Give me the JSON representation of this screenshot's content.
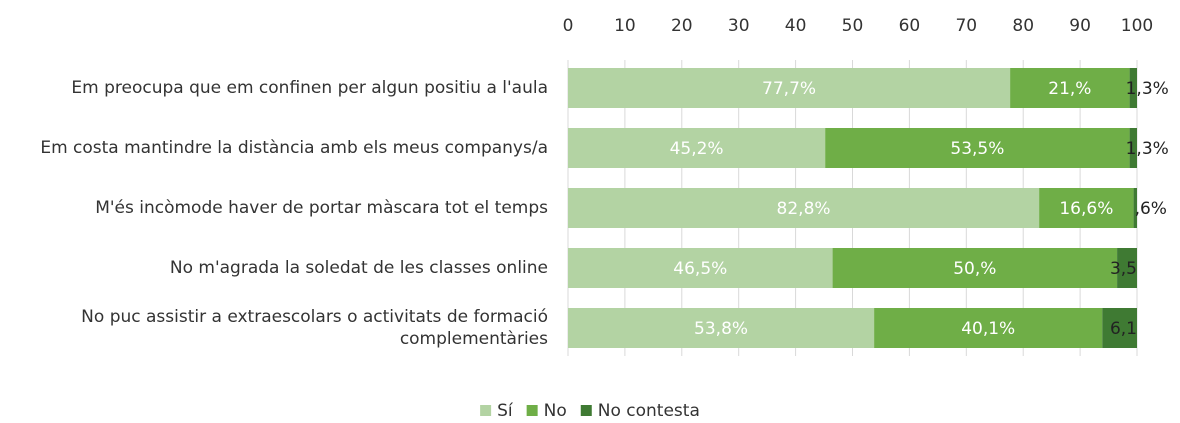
{
  "chart_data": {
    "type": "stacked-barh",
    "categories": [
      "Em preocupa que em confinen per algun positiu a l'aula",
      "Em costa mantindre la distància amb els meus companys/a",
      "M'és incòmode haver de portar màscara tot el temps",
      "No m'agrada la soledat de les classes online",
      "No puc assistir a extraescolars o activitats de formació complementàries"
    ],
    "series": [
      {
        "name": "Sí",
        "color": "#b3d3a3",
        "values": [
          77.7,
          45.2,
          82.8,
          46.5,
          53.8
        ],
        "value_labels": [
          "77,7%",
          "45,2%",
          "82,8%",
          "46,5%",
          "53,8%"
        ]
      },
      {
        "name": "No",
        "color": "#6fae47",
        "values": [
          21,
          53.5,
          16.6,
          50,
          40.1
        ],
        "value_labels": [
          "21,%",
          "53,5%",
          "16,6%",
          "50,%",
          "40,1%"
        ]
      },
      {
        "name": "No contesta",
        "color": "#3f7a33",
        "values": [
          1.3,
          1.3,
          0.6,
          3.5,
          6.1
        ],
        "value_labels": [
          "1,3%",
          "1,3%",
          ",6%",
          "3,5",
          "6,1"
        ]
      }
    ],
    "xlim": [
      0,
      100
    ],
    "xticks": [
      0,
      10,
      20,
      30,
      40,
      50,
      60,
      70,
      80,
      90,
      100
    ],
    "grid": true,
    "legend": "bottom"
  }
}
